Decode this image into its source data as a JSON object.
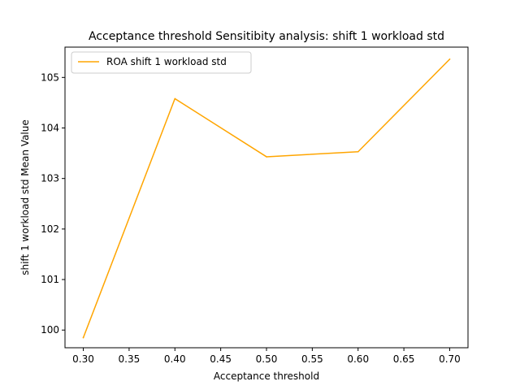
{
  "chart_data": {
    "type": "line",
    "title": "Acceptance threshold Sensitibity analysis: shift 1 workload std",
    "xlabel": "Acceptance threshold",
    "ylabel": "shift 1 workload std Mean Value",
    "x": [
      0.3,
      0.4,
      0.5,
      0.6,
      0.7
    ],
    "series": [
      {
        "name": "ROA shift 1 workload std",
        "color": "#ffa500",
        "values": [
          99.85,
          104.58,
          103.43,
          103.53,
          105.36
        ]
      }
    ],
    "xlim": [
      0.28,
      0.72
    ],
    "ylim": [
      99.65,
      105.6
    ],
    "xticks": [
      0.3,
      0.35,
      0.4,
      0.45,
      0.5,
      0.55,
      0.6,
      0.65,
      0.7
    ],
    "xtick_labels": [
      "0.30",
      "0.35",
      "0.40",
      "0.45",
      "0.50",
      "0.55",
      "0.60",
      "0.65",
      "0.70"
    ],
    "yticks": [
      100,
      101,
      102,
      103,
      104,
      105
    ],
    "ytick_labels": [
      "100",
      "101",
      "102",
      "103",
      "104",
      "105"
    ],
    "grid": false,
    "legend_position": "upper-left"
  }
}
